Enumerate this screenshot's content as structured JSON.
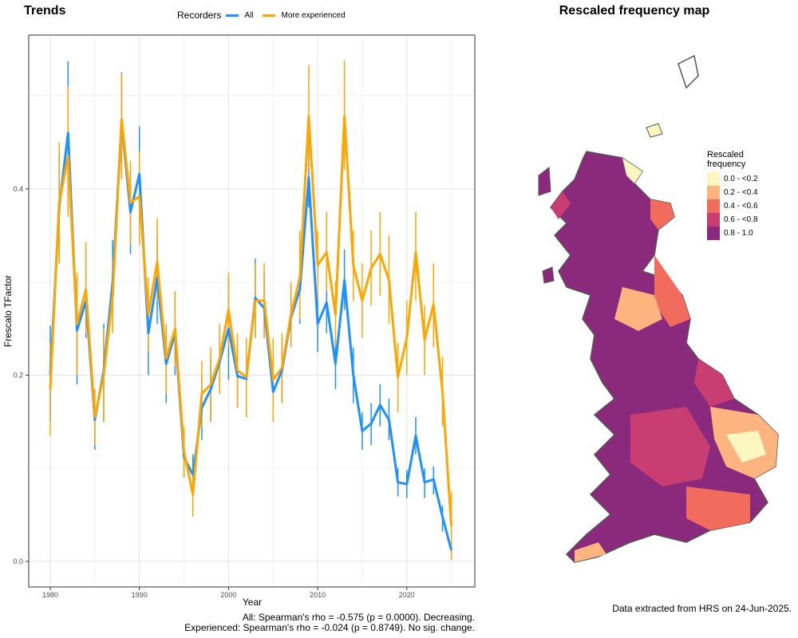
{
  "left_panel_title": "Trends",
  "right_panel_title": "Rescaled frequency map",
  "legend": {
    "title": "Recorders",
    "items": [
      {
        "label": "All",
        "color": "#1E90FF"
      },
      {
        "label": "More experienced",
        "color": "#FFA500"
      }
    ]
  },
  "stats": {
    "line1": "All: Spearman's rho = -0.575 (p = 0.0000). Decreasing.",
    "line2": "Experienced: Spearman's rho = -0.024 (p = 0.8749). No sig. change."
  },
  "credit": "Data extracted from HRS on 24-Jun-2025.",
  "map_legend": {
    "title_line1": "Rescaled",
    "title_line2": "frequency",
    "classes": [
      {
        "label": "0.0 - <0.2",
        "color": "#FCF7C0"
      },
      {
        "label": "0.2 - <0.4",
        "color": "#FDB47E"
      },
      {
        "label": "0.4 - <0.6",
        "color": "#F26C5E"
      },
      {
        "label": "0.6 - <0.8",
        "color": "#C93E72"
      },
      {
        "label": "0.8 - 1.0",
        "color": "#8B2A7C"
      }
    ]
  },
  "chart_data": {
    "type": "line",
    "title": "Trends",
    "xlabel": "Year",
    "ylabel": "Frescalo TFactor",
    "xlim": [
      1978.8,
      1980.0
    ],
    "x_ticks": [
      1980,
      1990,
      2000,
      2010,
      2020
    ],
    "y_ticks": [
      0.0,
      0.2,
      0.4
    ],
    "ylim": [
      -0.025,
      0.56
    ],
    "grid": true,
    "legend_position": "top",
    "x": [
      1980,
      1981,
      1982,
      1983,
      1984,
      1985,
      1986,
      1987,
      1988,
      1989,
      1990,
      1991,
      1992,
      1993,
      1994,
      1995,
      1996,
      1997,
      1998,
      1999,
      2000,
      2001,
      2002,
      2003,
      2004,
      2005,
      2006,
      2007,
      2008,
      2009,
      2010,
      2011,
      2012,
      2013,
      2014,
      2015,
      2016,
      2017,
      2018,
      2019,
      2020,
      2021,
      2022,
      2023,
      2024,
      2025
    ],
    "series": [
      {
        "name": "All",
        "color": "#1E90FF",
        "values": [
          0.2,
          0.38,
          0.46,
          0.248,
          0.28,
          0.152,
          0.205,
          0.3,
          0.472,
          0.375,
          0.416,
          0.245,
          0.305,
          0.212,
          0.245,
          0.112,
          0.093,
          0.165,
          0.185,
          0.214,
          0.25,
          0.199,
          0.196,
          0.283,
          0.272,
          0.182,
          0.205,
          0.262,
          0.292,
          0.412,
          0.255,
          0.278,
          0.212,
          0.302,
          0.2,
          0.14,
          0.148,
          0.168,
          0.152,
          0.085,
          0.083,
          0.135,
          0.085,
          0.088,
          0.048,
          0.012
        ],
        "lower": [
          0.15,
          0.32,
          0.41,
          0.19,
          0.24,
          0.12,
          0.15,
          0.25,
          0.425,
          0.33,
          0.365,
          0.2,
          0.255,
          0.17,
          0.2,
          0.09,
          0.068,
          0.13,
          0.15,
          0.18,
          0.195,
          0.165,
          0.16,
          0.24,
          0.24,
          0.15,
          0.17,
          0.23,
          0.255,
          0.38,
          0.225,
          0.245,
          0.185,
          0.27,
          0.17,
          0.12,
          0.125,
          0.145,
          0.13,
          0.07,
          0.068,
          0.115,
          0.068,
          0.072,
          0.032,
          0.002
        ],
        "upper": [
          0.253,
          0.44,
          0.537,
          0.305,
          0.315,
          0.185,
          0.255,
          0.345,
          0.525,
          0.42,
          0.467,
          0.29,
          0.35,
          0.25,
          0.29,
          0.138,
          0.115,
          0.2,
          0.22,
          0.25,
          0.303,
          0.235,
          0.235,
          0.325,
          0.31,
          0.215,
          0.24,
          0.295,
          0.325,
          0.455,
          0.285,
          0.31,
          0.24,
          0.335,
          0.23,
          0.16,
          0.17,
          0.19,
          0.175,
          0.1,
          0.098,
          0.155,
          0.1,
          0.102,
          0.06,
          0.022
        ]
      },
      {
        "name": "More experienced",
        "color": "#FFA500",
        "values": [
          0.185,
          0.385,
          0.435,
          0.255,
          0.292,
          0.155,
          0.2,
          0.285,
          0.475,
          0.385,
          0.392,
          0.265,
          0.322,
          0.218,
          0.25,
          0.118,
          0.072,
          0.18,
          0.19,
          0.218,
          0.27,
          0.205,
          0.198,
          0.28,
          0.28,
          0.195,
          0.208,
          0.265,
          0.305,
          0.478,
          0.318,
          0.332,
          0.265,
          0.478,
          0.318,
          0.28,
          0.315,
          0.33,
          0.302,
          0.198,
          0.24,
          0.332,
          0.238,
          0.276,
          0.182,
          0.038
        ],
        "lower": [
          0.135,
          0.32,
          0.37,
          0.2,
          0.245,
          0.125,
          0.15,
          0.245,
          0.41,
          0.34,
          0.34,
          0.225,
          0.28,
          0.18,
          0.21,
          0.09,
          0.048,
          0.145,
          0.15,
          0.18,
          0.23,
          0.165,
          0.155,
          0.24,
          0.24,
          0.15,
          0.17,
          0.23,
          0.26,
          0.42,
          0.28,
          0.29,
          0.23,
          0.42,
          0.28,
          0.24,
          0.275,
          0.285,
          0.255,
          0.16,
          0.2,
          0.28,
          0.2,
          0.23,
          0.145,
          0.002
        ],
        "upper": [
          0.235,
          0.45,
          0.51,
          0.31,
          0.343,
          0.185,
          0.25,
          0.325,
          0.523,
          0.43,
          0.44,
          0.305,
          0.368,
          0.255,
          0.29,
          0.145,
          0.098,
          0.215,
          0.23,
          0.255,
          0.31,
          0.245,
          0.24,
          0.32,
          0.32,
          0.24,
          0.245,
          0.3,
          0.355,
          0.533,
          0.355,
          0.375,
          0.3,
          0.538,
          0.355,
          0.32,
          0.355,
          0.375,
          0.35,
          0.235,
          0.28,
          0.375,
          0.275,
          0.32,
          0.22,
          0.075
        ]
      }
    ]
  }
}
